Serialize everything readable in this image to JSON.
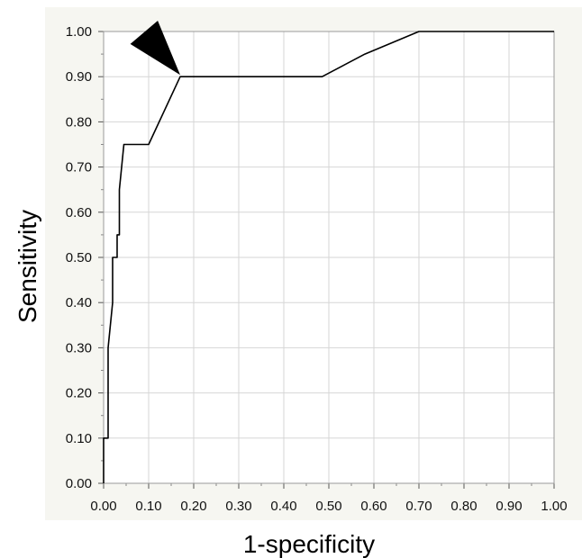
{
  "chart_data": {
    "type": "line",
    "title": "",
    "xlabel": "1-specificity",
    "ylabel": "Sensitivity",
    "xlim": [
      0,
      1
    ],
    "ylim": [
      0,
      1
    ],
    "grid": true,
    "x_ticks": [
      "0.00",
      "0.10",
      "0.20",
      "0.30",
      "0.40",
      "0.50",
      "0.60",
      "0.70",
      "0.80",
      "0.90",
      "1.00"
    ],
    "y_ticks": [
      "0.00",
      "0.10",
      "0.20",
      "0.30",
      "0.40",
      "0.50",
      "0.60",
      "0.70",
      "0.80",
      "0.90",
      "1.00"
    ],
    "series": [
      {
        "x": [
          0.0,
          0.0,
          0.01,
          0.01,
          0.02,
          0.02,
          0.03,
          0.03,
          0.035,
          0.035,
          0.045,
          0.1,
          0.17,
          0.35,
          0.485,
          0.58,
          0.7,
          1.0
        ],
        "y": [
          0.0,
          0.1,
          0.1,
          0.3,
          0.4,
          0.5,
          0.5,
          0.55,
          0.55,
          0.65,
          0.75,
          0.75,
          0.9,
          0.9,
          0.9,
          0.95,
          1.0,
          1.0
        ]
      }
    ],
    "annotations": [
      {
        "type": "arrow",
        "points_to": {
          "x": 0.17,
          "y": 0.9
        }
      }
    ],
    "colors": {
      "line": "#000000",
      "grid": "#d6d6d6",
      "panel_bg": "#f6f6f1"
    }
  }
}
